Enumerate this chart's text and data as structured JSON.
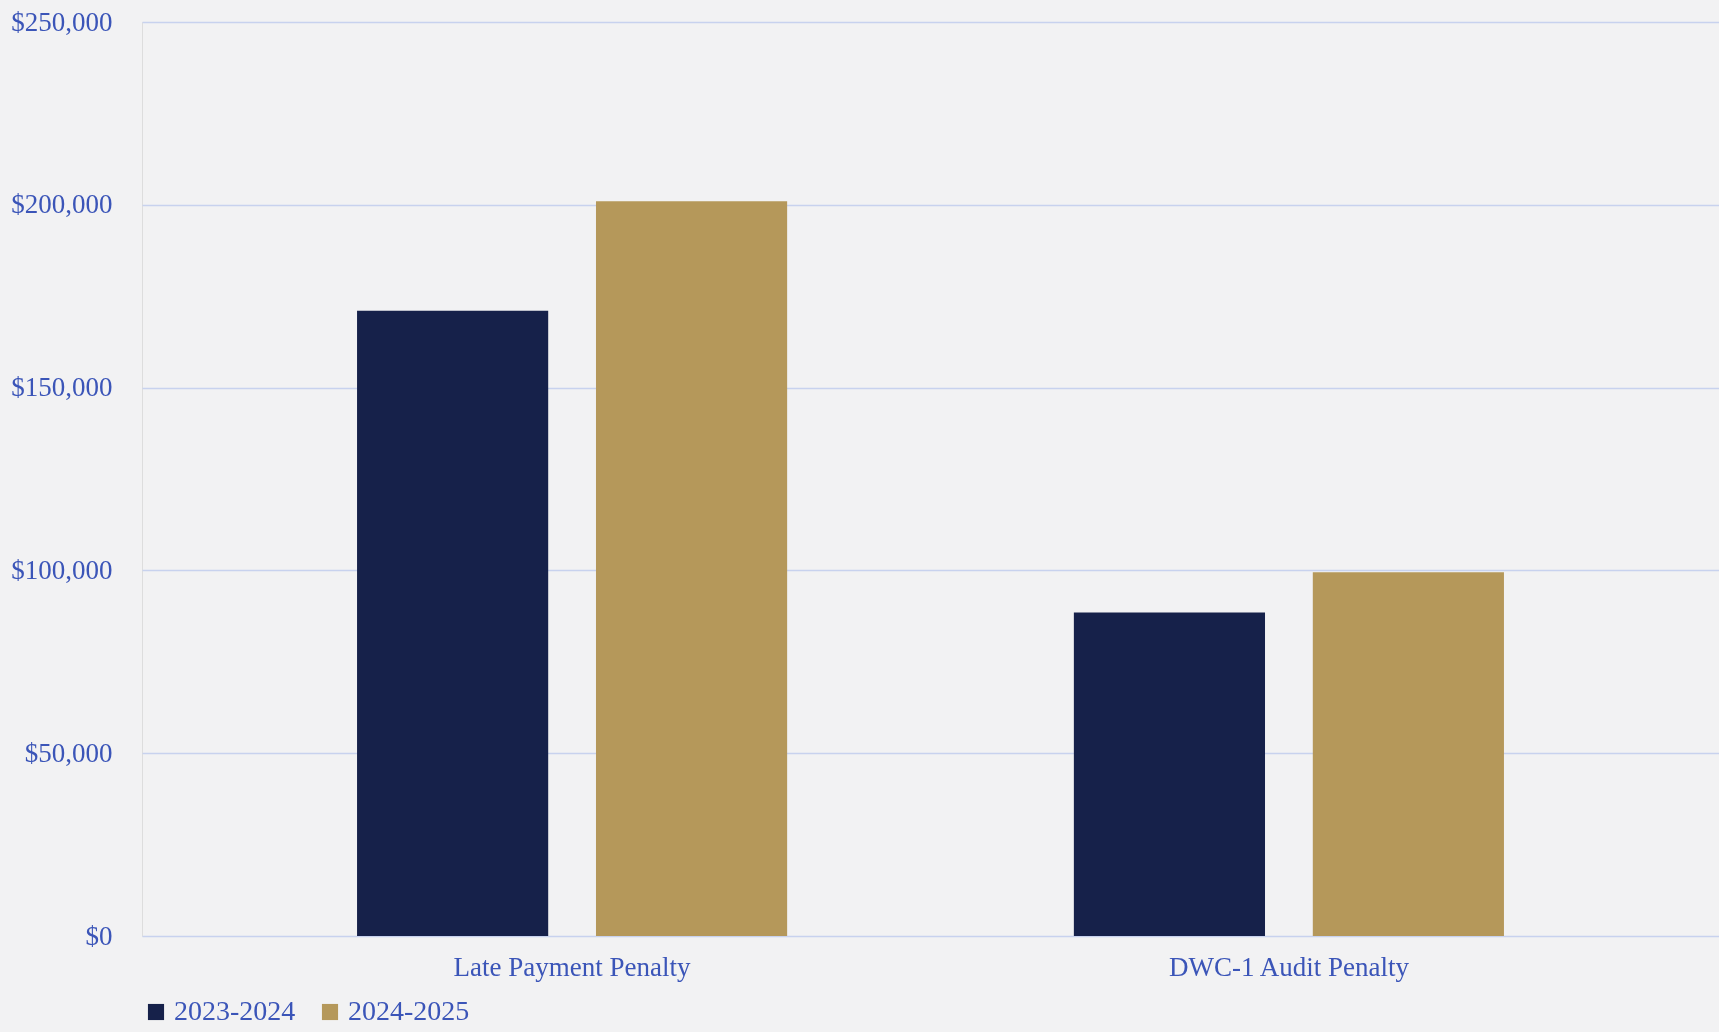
{
  "chart_data": {
    "type": "bar",
    "categories": [
      "Late Payment Penalty",
      "DWC-1 Audit Penalty"
    ],
    "series": [
      {
        "name": "2023-2024",
        "color": "#16214a",
        "values": [
          171000,
          88500
        ]
      },
      {
        "name": "2024-2025",
        "color": "#b5985a",
        "values": [
          201000,
          99500
        ]
      }
    ],
    "ylim": [
      0,
      250000
    ],
    "yticks": [
      {
        "value": 0,
        "label": "$0"
      },
      {
        "value": 50000,
        "label": "$50,000"
      },
      {
        "value": 100000,
        "label": "$100,000"
      },
      {
        "value": 150000,
        "label": "$150,000"
      },
      {
        "value": 200000,
        "label": "$200,000"
      },
      {
        "value": 250000,
        "label": "$250,000"
      }
    ],
    "grid": "y",
    "legend": "bottom"
  }
}
